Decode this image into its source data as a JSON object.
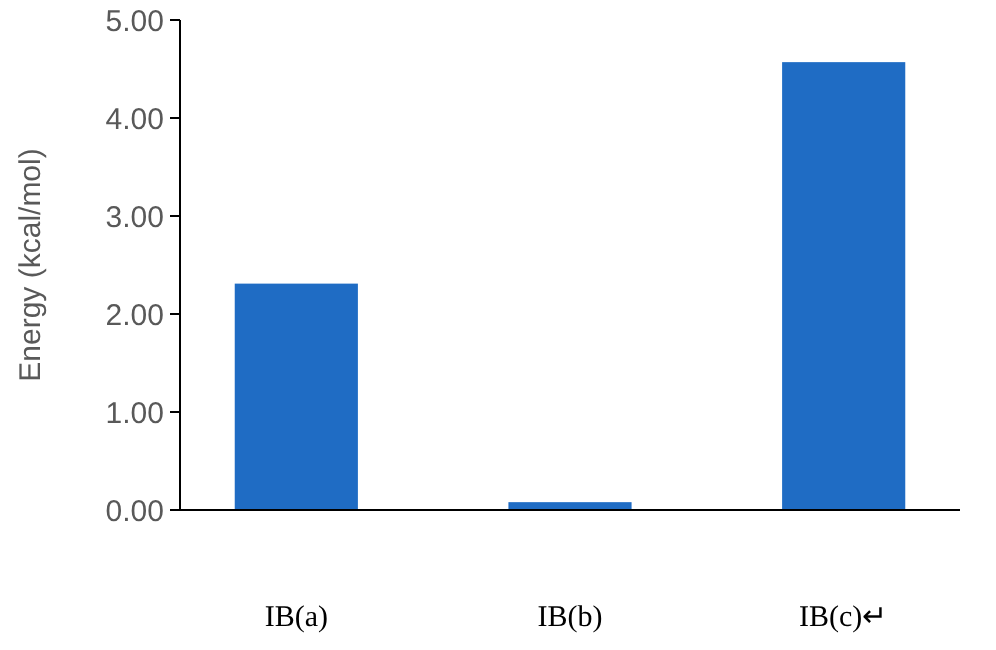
{
  "chart_data": {
    "type": "bar",
    "ylabel": "Energy (kcal/mol)",
    "categories": [
      "IB(a)",
      "IB(b)",
      "IB(c)↵"
    ],
    "values": [
      2.31,
      0.08,
      4.57
    ],
    "color": "#1f6cc4",
    "ylim": [
      0,
      5
    ],
    "yticks": [
      {
        "value": 0,
        "label": "0.00"
      },
      {
        "value": 1,
        "label": "1.00"
      },
      {
        "value": 2,
        "label": "2.00"
      },
      {
        "value": 3,
        "label": "3.00"
      },
      {
        "value": 4,
        "label": "4.00"
      },
      {
        "value": 5,
        "label": "5.00"
      }
    ],
    "grid": false
  }
}
